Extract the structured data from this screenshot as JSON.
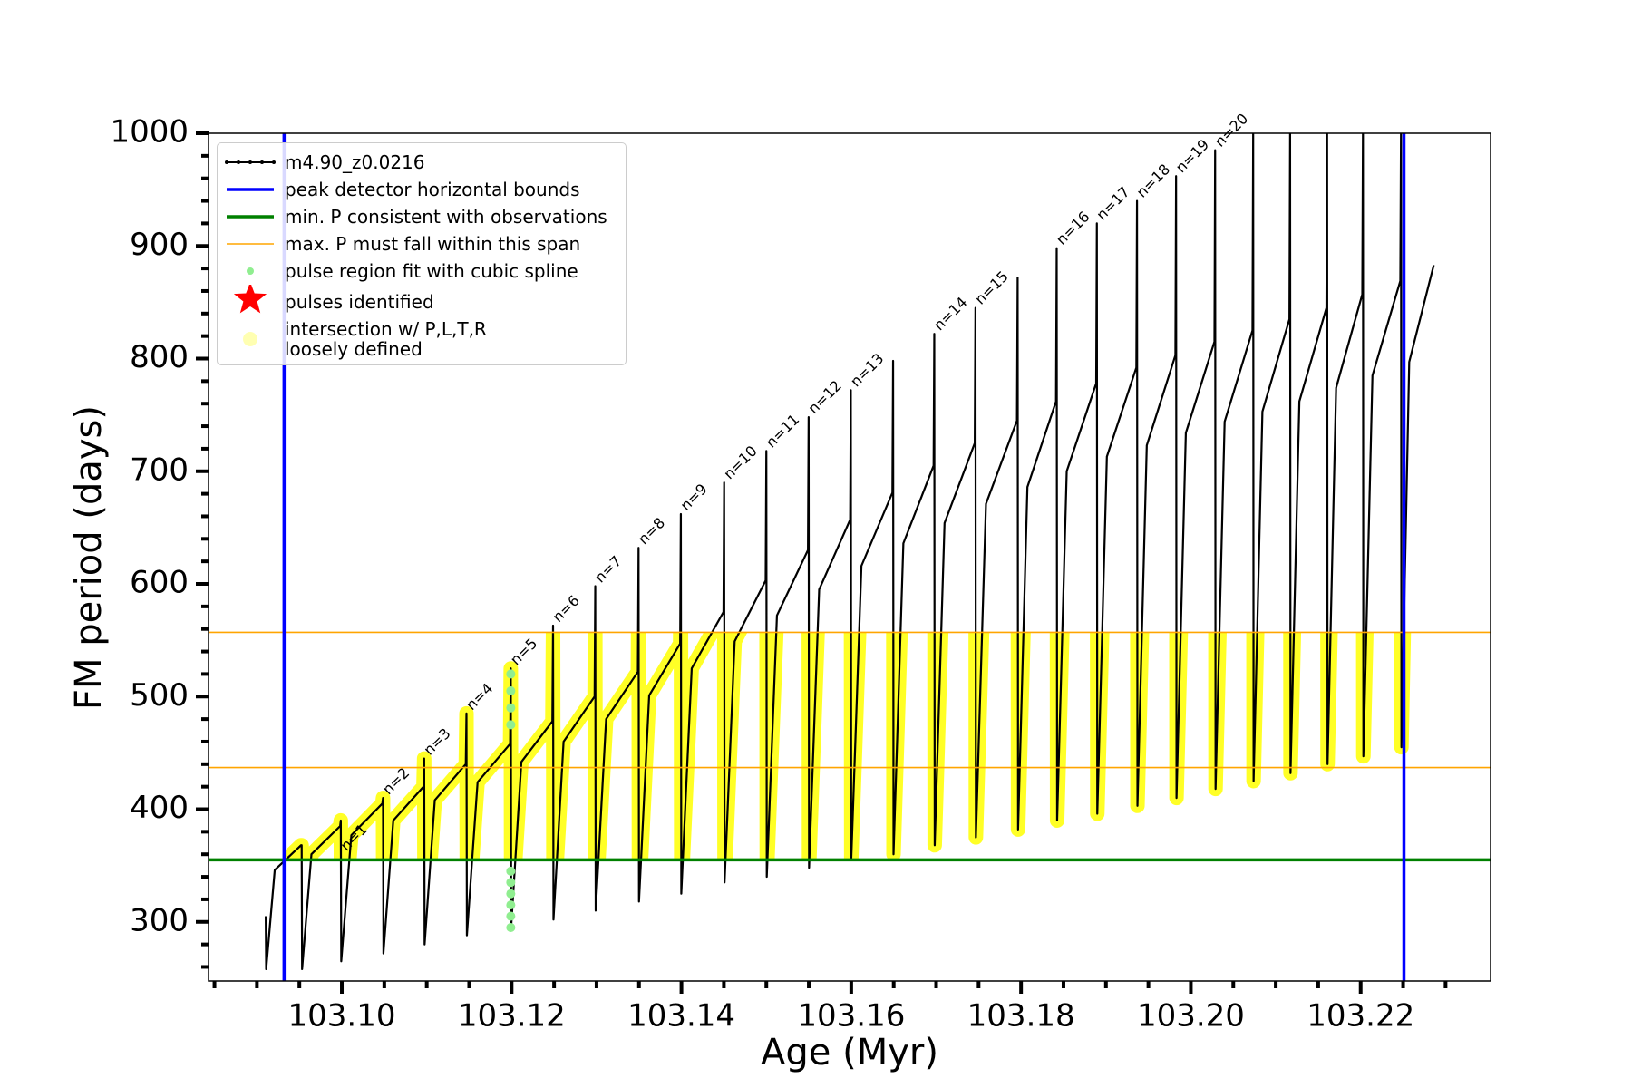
{
  "chart_data": {
    "type": "line",
    "xlabel": "Age (Myr)",
    "ylabel": "FM period (days)",
    "xlim": [
      103.0843,
      103.2353
    ],
    "ylim": [
      247.5,
      1000
    ],
    "xticks": [
      {
        "value": 103.1,
        "label": "103.10"
      },
      {
        "value": 103.12,
        "label": "103.12"
      },
      {
        "value": 103.14,
        "label": "103.14"
      },
      {
        "value": 103.16,
        "label": "103.16"
      },
      {
        "value": 103.18,
        "label": "103.18"
      },
      {
        "value": 103.2,
        "label": "103.20"
      },
      {
        "value": 103.22,
        "label": "103.22"
      }
    ],
    "xminorticks": [
      103.085,
      103.09,
      103.095,
      103.105,
      103.11,
      103.115,
      103.125,
      103.13,
      103.135,
      103.145,
      103.15,
      103.155,
      103.165,
      103.17,
      103.175,
      103.185,
      103.19,
      103.195,
      103.205,
      103.21,
      103.215,
      103.225,
      103.23
    ],
    "yticks": [
      300,
      400,
      500,
      600,
      700,
      800,
      900,
      1000
    ],
    "yminorticks": [
      260,
      280,
      320,
      340,
      360,
      380,
      420,
      440,
      460,
      480,
      520,
      540,
      560,
      580,
      620,
      640,
      660,
      680,
      720,
      740,
      760,
      780,
      820,
      840,
      860,
      880,
      920,
      940,
      960,
      980
    ],
    "legend": "upper left",
    "series": [
      {
        "name": "m4.90_z0.0216",
        "color": "#000000",
        "x": [
          103.09104,
          103.09109,
          103.0921,
          103.09519,
          103.09527,
          103.09532,
          103.09642,
          103.0998,
          103.09988,
          103.09993,
          103.10112,
          103.10477,
          103.10485,
          103.1049,
          103.10606,
          103.10962,
          103.1097,
          103.10975,
          103.11095,
          103.1146,
          103.11468,
          103.11473,
          103.11599,
          103.11982,
          103.1199,
          103.11995,
          103.12115,
          103.1248,
          103.12488,
          103.12493,
          103.12612,
          103.12977,
          103.12985,
          103.1299,
          103.13113,
          103.13487,
          103.13495,
          103.135,
          103.1362,
          103.13985,
          103.13993,
          103.13998,
          103.14121,
          103.14495,
          103.14503,
          103.14508,
          103.14627,
          103.14992,
          103.15,
          103.15005,
          103.15125,
          103.1549,
          103.15498,
          103.15503,
          103.15622,
          103.15987,
          103.15995,
          103.16,
          103.1612,
          103.16485,
          103.16493,
          103.16498,
          103.16614,
          103.1697,
          103.16978,
          103.16983,
          103.17099,
          103.17455,
          103.17463,
          103.17468,
          103.17587,
          103.17952,
          103.1796,
          103.17965,
          103.18075,
          103.18412,
          103.1842,
          103.18425,
          103.18538,
          103.18885,
          103.18893,
          103.18898,
          103.19011,
          103.19358,
          103.19366,
          103.19371,
          103.19481,
          103.19818,
          103.19826,
          103.19831,
          103.19941,
          103.20278,
          103.20286,
          103.20291,
          103.20398,
          103.20726,
          103.20734,
          103.20739,
          103.20843,
          103.21161,
          103.21169,
          103.21174,
          103.21278,
          103.21597,
          103.21605,
          103.2161,
          103.21711,
          103.22019,
          103.22027,
          103.22032,
          103.22139,
          103.22467,
          103.22475,
          103.2248,
          103.22572,
          103.22861
        ],
        "values": [
          305,
          258,
          346,
          368,
          368,
          258,
          360,
          385,
          390,
          265,
          377,
          405,
          410,
          272,
          390,
          420,
          445,
          280,
          408,
          440,
          485,
          288,
          424,
          458,
          525,
          296,
          442,
          478,
          563,
          302,
          460,
          500,
          598,
          310,
          480,
          522,
          632,
          318,
          501,
          547,
          662,
          325,
          525,
          575,
          690,
          335,
          549,
          603,
          718,
          340,
          572,
          630,
          748,
          348,
          595,
          657,
          772,
          355,
          616,
          681,
          798,
          360,
          636,
          705,
          822,
          368,
          654,
          725,
          845,
          375,
          671,
          745,
          872,
          382,
          686,
          762,
          898,
          390,
          700,
          778,
          920,
          396,
          713,
          792,
          940,
          403,
          723,
          803,
          962,
          410,
          734,
          815,
          985,
          418,
          744,
          825,
          1000,
          425,
          753,
          835,
          1000,
          432,
          762,
          845,
          1000,
          440,
          774,
          857,
          1000,
          447,
          785,
          869,
          1000,
          455,
          797,
          883
        ]
      },
      {
        "name": "pulse region fit with cubic spline",
        "color": "#90ee90",
        "type": "scatter",
        "x": [
          103.1199,
          103.1199,
          103.1199,
          103.1199,
          103.1199,
          103.1199,
          103.1199,
          103.1199,
          103.1199,
          103.1199
        ],
        "values": [
          295,
          305,
          315,
          325,
          335,
          345,
          475,
          490,
          505,
          520
        ]
      },
      {
        "name": "pulses identified",
        "color": "#ff0000",
        "type": "scatter",
        "marker": "star",
        "x": [],
        "values": []
      },
      {
        "name": "intersection w/ P,L,T,R\nloosely defined",
        "color": "#ffff00",
        "type": "scatter"
      }
    ],
    "vlines": {
      "name": "peak detector horizontal bounds",
      "color": "#0000ff",
      "values": [
        103.0932,
        103.2251
      ]
    },
    "hlines": [
      {
        "name": "min. P consistent with observations",
        "color": "#008000",
        "values": [
          355
        ]
      },
      {
        "name": "max. P must fall within this span",
        "color": "#ffa500",
        "values": [
          437,
          557
        ]
      }
    ],
    "annotations": [
      {
        "text": "n=1",
        "x": 103.09988,
        "y": 360
      },
      {
        "text": "n=2",
        "x": 103.10485,
        "y": 410
      },
      {
        "text": "n=3",
        "x": 103.1097,
        "y": 445
      },
      {
        "text": "n=4",
        "x": 103.11468,
        "y": 485
      },
      {
        "text": "n=5",
        "x": 103.1199,
        "y": 525
      },
      {
        "text": "n=6",
        "x": 103.12488,
        "y": 563
      },
      {
        "text": "n=7",
        "x": 103.12985,
        "y": 598
      },
      {
        "text": "n=8",
        "x": 103.13495,
        "y": 632
      },
      {
        "text": "n=9",
        "x": 103.13993,
        "y": 662
      },
      {
        "text": "n=10",
        "x": 103.14503,
        "y": 690
      },
      {
        "text": "n=11",
        "x": 103.15,
        "y": 718
      },
      {
        "text": "n=12",
        "x": 103.15498,
        "y": 748
      },
      {
        "text": "n=13",
        "x": 103.15995,
        "y": 772
      },
      {
        "text": "n=14",
        "x": 103.16978,
        "y": 822
      },
      {
        "text": "n=15",
        "x": 103.17463,
        "y": 845
      },
      {
        "text": "n=16",
        "x": 103.1842,
        "y": 898
      },
      {
        "text": "n=17",
        "x": 103.18893,
        "y": 920
      },
      {
        "text": "n=18",
        "x": 103.19366,
        "y": 940
      },
      {
        "text": "n=19",
        "x": 103.19826,
        "y": 962
      },
      {
        "text": "n=20",
        "x": 103.20286,
        "y": 985
      }
    ]
  }
}
